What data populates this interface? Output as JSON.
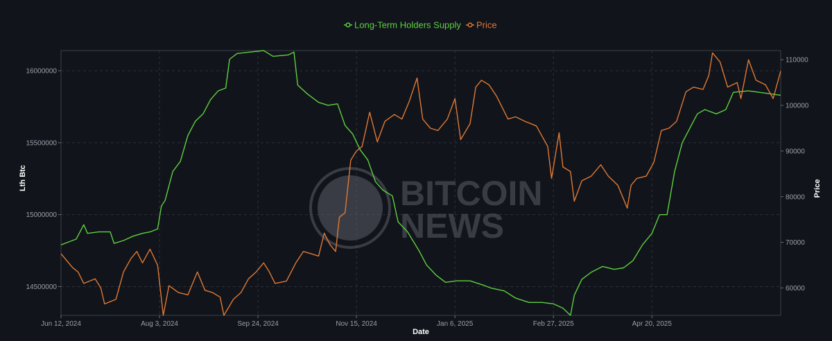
{
  "chart_data": {
    "type": "line",
    "title": "",
    "xlabel": "Date",
    "ylabel_left": "Lth Btc",
    "ylabel_right": "Price",
    "x_range": [
      "2024-06-12",
      "2025-06-27"
    ],
    "y_left_range": [
      14300000,
      16140000
    ],
    "y_right_range": [
      54000,
      112000
    ],
    "x_ticks": [
      {
        "date": "2024-06-12",
        "label": "Jun 12, 2024"
      },
      {
        "date": "2024-08-03",
        "label": "Aug 3, 2024"
      },
      {
        "date": "2024-09-24",
        "label": "Sep 24, 2024"
      },
      {
        "date": "2024-11-15",
        "label": "Nov 15, 2024"
      },
      {
        "date": "2025-01-06",
        "label": "Jan 6, 2025"
      },
      {
        "date": "2025-02-27",
        "label": "Feb 27, 2025"
      },
      {
        "date": "2025-04-20",
        "label": "Apr 20, 2025"
      }
    ],
    "y_left_ticks": [
      {
        "value": 14500000,
        "label": "14500000"
      },
      {
        "value": 15000000,
        "label": "15000000"
      },
      {
        "value": 15500000,
        "label": "15500000"
      },
      {
        "value": 16000000,
        "label": "16000000"
      }
    ],
    "y_right_ticks": [
      {
        "value": 60000,
        "label": "60000"
      },
      {
        "value": 70000,
        "label": "70000"
      },
      {
        "value": 80000,
        "label": "80000"
      },
      {
        "value": 90000,
        "label": "90000"
      },
      {
        "value": 100000,
        "label": "100000"
      },
      {
        "value": 110000,
        "label": "110000"
      }
    ],
    "grid": true,
    "legend_position": "top-center",
    "series": [
      {
        "name": "Long-Term Holders Supply",
        "axis": "left",
        "color": "#5fd13f",
        "points": [
          [
            "2024-06-12",
            14790000
          ],
          [
            "2024-06-16",
            14810000
          ],
          [
            "2024-06-20",
            14830000
          ],
          [
            "2024-06-24",
            14930000
          ],
          [
            "2024-06-26",
            14870000
          ],
          [
            "2024-07-02",
            14880000
          ],
          [
            "2024-07-08",
            14880000
          ],
          [
            "2024-07-10",
            14800000
          ],
          [
            "2024-07-15",
            14820000
          ],
          [
            "2024-07-20",
            14850000
          ],
          [
            "2024-07-25",
            14870000
          ],
          [
            "2024-07-29",
            14880000
          ],
          [
            "2024-08-02",
            14900000
          ],
          [
            "2024-08-04",
            15060000
          ],
          [
            "2024-08-06",
            15100000
          ],
          [
            "2024-08-10",
            15300000
          ],
          [
            "2024-08-14",
            15370000
          ],
          [
            "2024-08-18",
            15550000
          ],
          [
            "2024-08-22",
            15650000
          ],
          [
            "2024-08-26",
            15700000
          ],
          [
            "2024-08-30",
            15800000
          ],
          [
            "2024-09-03",
            15860000
          ],
          [
            "2024-09-07",
            15880000
          ],
          [
            "2024-09-09",
            16080000
          ],
          [
            "2024-09-13",
            16120000
          ],
          [
            "2024-09-20",
            16130000
          ],
          [
            "2024-09-27",
            16140000
          ],
          [
            "2024-10-02",
            16100000
          ],
          [
            "2024-10-10",
            16110000
          ],
          [
            "2024-10-13",
            16130000
          ],
          [
            "2024-10-15",
            15900000
          ],
          [
            "2024-10-20",
            15840000
          ],
          [
            "2024-10-26",
            15780000
          ],
          [
            "2024-10-31",
            15760000
          ],
          [
            "2024-11-05",
            15770000
          ],
          [
            "2024-11-09",
            15620000
          ],
          [
            "2024-11-13",
            15560000
          ],
          [
            "2024-11-17",
            15450000
          ],
          [
            "2024-11-21",
            15380000
          ],
          [
            "2024-11-25",
            15230000
          ],
          [
            "2024-11-29",
            15170000
          ],
          [
            "2024-12-04",
            15130000
          ],
          [
            "2024-12-07",
            14950000
          ],
          [
            "2024-12-12",
            14880000
          ],
          [
            "2024-12-18",
            14750000
          ],
          [
            "2024-12-22",
            14650000
          ],
          [
            "2024-12-27",
            14580000
          ],
          [
            "2025-01-01",
            14530000
          ],
          [
            "2025-01-07",
            14540000
          ],
          [
            "2025-01-14",
            14540000
          ],
          [
            "2025-01-21",
            14510000
          ],
          [
            "2025-01-25",
            14490000
          ],
          [
            "2025-02-01",
            14470000
          ],
          [
            "2025-02-07",
            14420000
          ],
          [
            "2025-02-14",
            14390000
          ],
          [
            "2025-02-21",
            14390000
          ],
          [
            "2025-02-27",
            14380000
          ],
          [
            "2025-03-04",
            14350000
          ],
          [
            "2025-03-08",
            14300000
          ],
          [
            "2025-03-10",
            14440000
          ],
          [
            "2025-03-14",
            14550000
          ],
          [
            "2025-03-19",
            14600000
          ],
          [
            "2025-03-25",
            14640000
          ],
          [
            "2025-03-31",
            14620000
          ],
          [
            "2025-04-05",
            14630000
          ],
          [
            "2025-04-10",
            14680000
          ],
          [
            "2025-04-15",
            14790000
          ],
          [
            "2025-04-20",
            14870000
          ],
          [
            "2025-04-24",
            15000000
          ],
          [
            "2025-04-28",
            15000000
          ],
          [
            "2025-05-02",
            15300000
          ],
          [
            "2025-05-06",
            15500000
          ],
          [
            "2025-05-10",
            15600000
          ],
          [
            "2025-05-14",
            15700000
          ],
          [
            "2025-05-18",
            15730000
          ],
          [
            "2025-05-24",
            15700000
          ],
          [
            "2025-05-29",
            15730000
          ],
          [
            "2025-06-02",
            15850000
          ],
          [
            "2025-06-10",
            15860000
          ],
          [
            "2025-06-27",
            15830000
          ]
        ]
      },
      {
        "name": "Price",
        "axis": "right",
        "color": "#e07a34",
        "points": [
          [
            "2024-06-12",
            67500
          ],
          [
            "2024-06-15",
            66000
          ],
          [
            "2024-06-18",
            64500
          ],
          [
            "2024-06-21",
            63500
          ],
          [
            "2024-06-24",
            61000
          ],
          [
            "2024-06-27",
            61500
          ],
          [
            "2024-06-30",
            62000
          ],
          [
            "2024-07-03",
            60000
          ],
          [
            "2024-07-05",
            56500
          ],
          [
            "2024-07-08",
            57000
          ],
          [
            "2024-07-11",
            57500
          ],
          [
            "2024-07-15",
            63500
          ],
          [
            "2024-07-19",
            66500
          ],
          [
            "2024-07-22",
            68000
          ],
          [
            "2024-07-25",
            65500
          ],
          [
            "2024-07-29",
            68500
          ],
          [
            "2024-08-02",
            65000
          ],
          [
            "2024-08-05",
            54000
          ],
          [
            "2024-08-08",
            60500
          ],
          [
            "2024-08-13",
            59000
          ],
          [
            "2024-08-18",
            58500
          ],
          [
            "2024-08-23",
            63500
          ],
          [
            "2024-08-27",
            59500
          ],
          [
            "2024-08-31",
            59000
          ],
          [
            "2024-09-04",
            58000
          ],
          [
            "2024-09-06",
            54000
          ],
          [
            "2024-09-11",
            57500
          ],
          [
            "2024-09-15",
            59000
          ],
          [
            "2024-09-19",
            62000
          ],
          [
            "2024-09-23",
            63500
          ],
          [
            "2024-09-27",
            65500
          ],
          [
            "2024-09-30",
            63500
          ],
          [
            "2024-10-03",
            61000
          ],
          [
            "2024-10-09",
            61500
          ],
          [
            "2024-10-14",
            65500
          ],
          [
            "2024-10-18",
            68000
          ],
          [
            "2024-10-22",
            67500
          ],
          [
            "2024-10-26",
            67000
          ],
          [
            "2024-10-29",
            72000
          ],
          [
            "2024-11-01",
            69500
          ],
          [
            "2024-11-04",
            68000
          ],
          [
            "2024-11-06",
            75500
          ],
          [
            "2024-11-09",
            76500
          ],
          [
            "2024-11-12",
            88000
          ],
          [
            "2024-11-15",
            90000
          ],
          [
            "2024-11-18",
            91000
          ],
          [
            "2024-11-22",
            98500
          ],
          [
            "2024-11-26",
            92000
          ],
          [
            "2024-11-30",
            96500
          ],
          [
            "2024-12-05",
            98000
          ],
          [
            "2024-12-09",
            97000
          ],
          [
            "2024-12-13",
            101000
          ],
          [
            "2024-12-17",
            106000
          ],
          [
            "2024-12-20",
            97000
          ],
          [
            "2024-12-24",
            95000
          ],
          [
            "2024-12-28",
            94500
          ],
          [
            "2025-01-02",
            97000
          ],
          [
            "2025-01-06",
            101500
          ],
          [
            "2025-01-09",
            92500
          ],
          [
            "2025-01-14",
            96000
          ],
          [
            "2025-01-17",
            104000
          ],
          [
            "2025-01-20",
            105500
          ],
          [
            "2025-01-24",
            104500
          ],
          [
            "2025-01-28",
            102000
          ],
          [
            "2025-02-03",
            97000
          ],
          [
            "2025-02-07",
            97500
          ],
          [
            "2025-02-12",
            96500
          ],
          [
            "2025-02-18",
            95500
          ],
          [
            "2025-02-24",
            91000
          ],
          [
            "2025-02-26",
            84000
          ],
          [
            "2025-03-02",
            94000
          ],
          [
            "2025-03-04",
            86500
          ],
          [
            "2025-03-08",
            85500
          ],
          [
            "2025-03-10",
            79000
          ],
          [
            "2025-03-14",
            83500
          ],
          [
            "2025-03-19",
            84500
          ],
          [
            "2025-03-24",
            87000
          ],
          [
            "2025-03-28",
            84500
          ],
          [
            "2025-04-02",
            82500
          ],
          [
            "2025-04-07",
            77500
          ],
          [
            "2025-04-09",
            82500
          ],
          [
            "2025-04-12",
            84000
          ],
          [
            "2025-04-17",
            84500
          ],
          [
            "2025-04-21",
            87500
          ],
          [
            "2025-04-25",
            94500
          ],
          [
            "2025-04-29",
            95000
          ],
          [
            "2025-05-03",
            96500
          ],
          [
            "2025-05-08",
            103000
          ],
          [
            "2025-05-12",
            104000
          ],
          [
            "2025-05-17",
            103500
          ],
          [
            "2025-05-20",
            106500
          ],
          [
            "2025-05-22",
            111500
          ],
          [
            "2025-05-26",
            109500
          ],
          [
            "2025-05-30",
            104000
          ],
          [
            "2025-06-04",
            105000
          ],
          [
            "2025-06-06",
            101500
          ],
          [
            "2025-06-10",
            110000
          ],
          [
            "2025-06-14",
            105500
          ],
          [
            "2025-06-19",
            104500
          ],
          [
            "2025-06-23",
            101500
          ],
          [
            "2025-06-27",
            107500
          ]
        ]
      }
    ]
  },
  "watermark": {
    "line1": "BITCOIN",
    "line2": "NEWS",
    "symbol": "₿"
  },
  "legend_marker_icon": "line-with-circle-icon"
}
